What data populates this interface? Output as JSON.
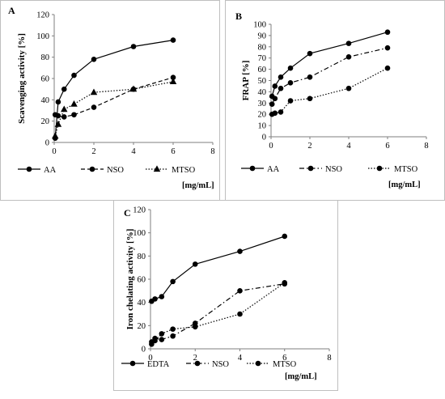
{
  "chart_data": [
    {
      "type": "line",
      "panel_label": "A",
      "ylabel": "Scavenging activity [%]",
      "xunit_label": "[mg/mL]",
      "xlim": [
        0,
        8
      ],
      "ylim": [
        0,
        120
      ],
      "xticks": [
        "0",
        "2",
        "4",
        "6",
        "8"
      ],
      "yticks": [
        "0",
        "20",
        "40",
        "60",
        "80",
        "100",
        "120"
      ],
      "legend": "bottom",
      "grid": false,
      "series": [
        {
          "name": "AA",
          "dash": "solid",
          "marker": "circle",
          "x": [
            0.05,
            0.2,
            0.5,
            1,
            2,
            4,
            6
          ],
          "y": [
            4,
            38,
            50,
            63,
            78,
            90,
            96
          ]
        },
        {
          "name": "NSO",
          "dash": "dash",
          "marker": "circle",
          "x": [
            0.05,
            0.2,
            0.5,
            1,
            2,
            4,
            6
          ],
          "y": [
            26,
            25,
            24,
            26,
            33,
            50,
            61
          ]
        },
        {
          "name": "MTSO",
          "dash": "dot",
          "marker": "triangle",
          "x": [
            0.05,
            0.2,
            0.5,
            1,
            2,
            4,
            6
          ],
          "y": [
            6,
            17,
            31,
            36,
            47,
            50,
            57
          ]
        }
      ]
    },
    {
      "type": "line",
      "panel_label": "B",
      "ylabel": "FRAP [%]",
      "xunit_label": "[mg/mL]",
      "xlim": [
        0,
        8
      ],
      "ylim": [
        0,
        100
      ],
      "xticks": [
        "0",
        "2",
        "4",
        "6",
        "8"
      ],
      "yticks": [
        "0",
        "10",
        "20",
        "30",
        "40",
        "50",
        "60",
        "70",
        "80",
        "90",
        "100"
      ],
      "legend": "bottom",
      "grid": false,
      "series": [
        {
          "name": "AA",
          "dash": "solid",
          "marker": "circle",
          "x": [
            0.05,
            0.2,
            0.5,
            1,
            2,
            4,
            6
          ],
          "y": [
            36,
            45,
            53,
            61,
            74,
            83,
            93
          ]
        },
        {
          "name": "NSO",
          "dash": "dashdot",
          "marker": "circle",
          "x": [
            0.05,
            0.2,
            0.5,
            1,
            2,
            4,
            6
          ],
          "y": [
            29,
            34,
            43,
            48,
            53,
            71,
            79
          ]
        },
        {
          "name": "MTSO",
          "dash": "dot",
          "marker": "circle",
          "x": [
            0.05,
            0.2,
            0.5,
            1,
            2,
            4,
            6
          ],
          "y": [
            20,
            21,
            22,
            32,
            34,
            43,
            61
          ]
        }
      ]
    },
    {
      "type": "line",
      "panel_label": "C",
      "ylabel": "Iron chelating activity [%]",
      "xunit_label": "[mg/mL]",
      "xlim": [
        0,
        8
      ],
      "ylim": [
        0,
        120
      ],
      "xticks": [
        "0",
        "2",
        "4",
        "6",
        "8"
      ],
      "yticks": [
        "0",
        "20",
        "40",
        "60",
        "80",
        "100",
        "120"
      ],
      "legend": "bottom",
      "grid": false,
      "series": [
        {
          "name": "EDTA",
          "dash": "solid",
          "marker": "circle",
          "x": [
            0.05,
            0.2,
            0.5,
            1,
            2,
            4,
            6
          ],
          "y": [
            41,
            43,
            45,
            58,
            73,
            84,
            97
          ]
        },
        {
          "name": "NSO",
          "dash": "dashdot",
          "marker": "circle",
          "x": [
            0.05,
            0.2,
            0.5,
            1,
            2,
            4,
            6
          ],
          "y": [
            6,
            9,
            8,
            11,
            22,
            50,
            56
          ]
        },
        {
          "name": "MTSO",
          "dash": "dot",
          "marker": "circle",
          "x": [
            0.05,
            0.2,
            0.5,
            1,
            2,
            4,
            6
          ],
          "y": [
            4,
            7,
            13,
            17,
            19,
            30,
            57
          ]
        }
      ]
    }
  ]
}
